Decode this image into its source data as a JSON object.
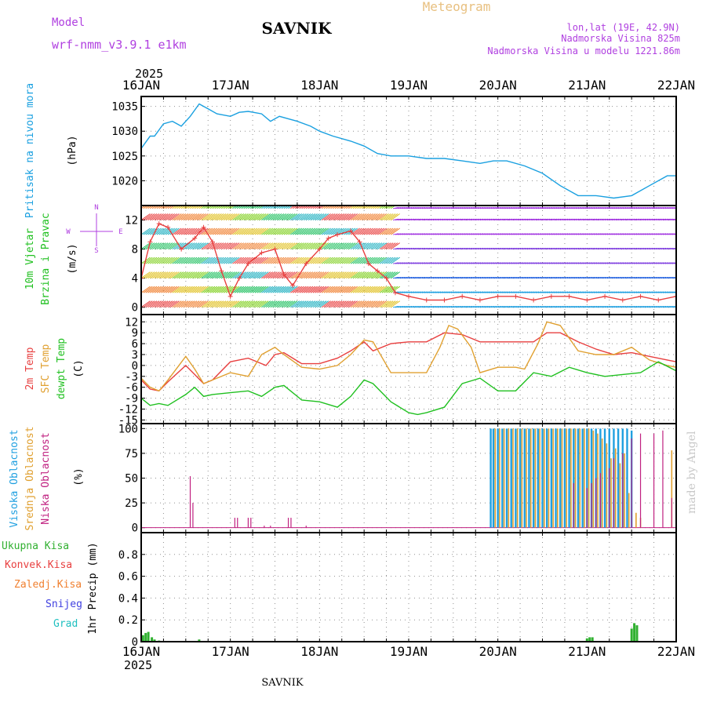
{
  "header": {
    "model_label": "Model",
    "model_name": "wrf-nmm_v3.9.1 e1km",
    "station": "SAVNIK",
    "title": "Meteogram",
    "lonlat": "lon,lat (19E, 42.9N)",
    "elevation": "Nadmorska Visina 825m",
    "model_elevation": "Nadmorska Visina u modelu 1221.86m",
    "year_top": "2025",
    "year_bottom": "2025",
    "footer_station": "SAVNIK",
    "credit": "made by Angel"
  },
  "colors": {
    "pressure": "#1aa0e0",
    "temp2m": "#e84040",
    "sfc": "#e0a030",
    "dewpt": "#20c020",
    "high_cloud": "#20a0e0",
    "mid_cloud": "#e0a030",
    "low_cloud": "#c02080",
    "rain_total": "#30b030",
    "rain_conv": "#e84040",
    "rain_frz": "#f08030",
    "snow": "#4040e0",
    "hail": "#20c0c0",
    "model_purple": "#b040e0"
  },
  "chart_data": [
    {
      "type": "line",
      "panel": "pressure",
      "ylabel": [
        "Pritisak na nivou mora",
        "(hPa)"
      ],
      "unit": "hPa",
      "ylim": [
        1015,
        1037
      ],
      "yticks": [
        1020,
        1025,
        1030,
        1035
      ],
      "x_day_range": [
        16,
        22
      ],
      "series": [
        {
          "x": [
            16.0,
            16.1,
            16.15,
            16.25,
            16.35,
            16.45,
            16.55,
            16.65,
            16.75,
            16.85,
            17.0,
            17.1,
            17.2,
            17.35,
            17.45,
            17.55,
            17.65,
            17.75,
            17.9,
            18.0,
            18.15,
            18.35,
            18.5,
            18.65,
            18.8,
            19.0,
            19.2,
            19.4,
            19.6,
            19.8,
            19.95,
            20.1,
            20.3,
            20.5,
            20.7,
            20.9,
            21.1,
            21.3,
            21.5,
            21.7,
            21.9,
            22.0
          ],
          "y": [
            1026.5,
            1029.0,
            1029.0,
            1031.5,
            1032.0,
            1031.0,
            1033.0,
            1035.5,
            1034.5,
            1033.5,
            1033.0,
            1033.8,
            1034.0,
            1033.5,
            1032.0,
            1033.0,
            1032.5,
            1032.0,
            1031.0,
            1030.0,
            1029.0,
            1028.0,
            1027.0,
            1025.5,
            1025.0,
            1025.0,
            1024.5,
            1024.5,
            1024.0,
            1023.5,
            1024.0,
            1024.0,
            1023.0,
            1021.5,
            1019.0,
            1017.0,
            1017.0,
            1016.5,
            1017.0,
            1019.0,
            1021.0,
            1021.0
          ]
        }
      ]
    },
    {
      "type": "line",
      "panel": "wind",
      "ylabel": [
        "10m Vjetar",
        "Brzina i Pravac",
        "(m/s)"
      ],
      "compass": [
        "N",
        "S",
        "W",
        "E"
      ],
      "unit": "m/s",
      "ylim": [
        -1,
        14
      ],
      "yticks": [
        0,
        4,
        8,
        12
      ],
      "x_day_range": [
        16,
        22
      ],
      "series": [
        {
          "name": "speed",
          "x": [
            16.0,
            16.1,
            16.2,
            16.3,
            16.45,
            16.6,
            16.7,
            16.8,
            16.9,
            17.0,
            17.1,
            17.2,
            17.35,
            17.5,
            17.6,
            17.7,
            17.85,
            18.0,
            18.1,
            18.2,
            18.35,
            18.45,
            18.55,
            18.65,
            18.75,
            18.85,
            19.0,
            19.2,
            19.4,
            19.6,
            19.8,
            20.0,
            20.2,
            20.4,
            20.6,
            20.8,
            21.0,
            21.2,
            21.4,
            21.6,
            21.8,
            22.0
          ],
          "y": [
            4.0,
            9.0,
            11.5,
            11.0,
            8.0,
            9.5,
            11.0,
            9.0,
            5.0,
            1.5,
            4.0,
            6.0,
            7.5,
            8.0,
            4.5,
            3.0,
            6.0,
            8.0,
            9.5,
            10.0,
            10.5,
            9.0,
            6.0,
            5.0,
            4.0,
            2.0,
            1.5,
            1.0,
            1.0,
            1.5,
            1.0,
            1.5,
            1.5,
            1.0,
            1.5,
            1.5,
            1.0,
            1.5,
            1.0,
            1.5,
            1.0,
            1.5
          ]
        }
      ]
    },
    {
      "type": "line",
      "panel": "temperature",
      "ylabel": [
        "2m Temp",
        "SFC Temp",
        "dewpt Temp",
        "(C)"
      ],
      "unit": "C",
      "ylim": [
        -16,
        14
      ],
      "yticks": [
        -15,
        -12,
        -9,
        -6,
        -3,
        0,
        3,
        6,
        9,
        12
      ],
      "x_day_range": [
        16,
        22
      ],
      "series": [
        {
          "name": "2m Temp",
          "x": [
            16.0,
            16.1,
            16.2,
            16.3,
            16.5,
            16.6,
            16.7,
            16.8,
            17.0,
            17.2,
            17.4,
            17.5,
            17.6,
            17.8,
            18.0,
            18.2,
            18.35,
            18.5,
            18.6,
            18.8,
            19.0,
            19.2,
            19.4,
            19.6,
            19.8,
            20.0,
            20.2,
            20.4,
            20.55,
            20.7,
            20.9,
            21.1,
            21.3,
            21.5,
            21.7,
            21.9,
            22.0
          ],
          "y": [
            -4.0,
            -6.5,
            -7.0,
            -4.5,
            0.0,
            -2.5,
            -5.0,
            -4.0,
            1.0,
            2.0,
            0.0,
            3.0,
            3.5,
            0.5,
            0.5,
            2.0,
            4.0,
            6.5,
            4.0,
            6.0,
            6.5,
            6.5,
            9.0,
            8.5,
            6.5,
            6.5,
            6.5,
            6.5,
            9.0,
            9.0,
            6.5,
            4.5,
            3.0,
            3.5,
            2.5,
            1.5,
            1.0
          ]
        },
        {
          "name": "SFC Temp",
          "x": [
            16.0,
            16.1,
            16.2,
            16.3,
            16.5,
            16.6,
            16.7,
            16.8,
            17.0,
            17.2,
            17.35,
            17.5,
            17.6,
            17.8,
            18.0,
            18.2,
            18.35,
            18.5,
            18.6,
            18.8,
            19.0,
            19.2,
            19.35,
            19.45,
            19.55,
            19.7,
            19.8,
            20.0,
            20.2,
            20.3,
            20.45,
            20.55,
            20.7,
            20.9,
            21.1,
            21.3,
            21.5,
            21.7,
            21.9,
            22.0
          ],
          "y": [
            -3.5,
            -6.0,
            -7.0,
            -4.0,
            2.5,
            -1.0,
            -5.0,
            -4.0,
            -2.0,
            -3.0,
            3.0,
            5.0,
            3.0,
            -0.5,
            -1.0,
            0.0,
            3.0,
            7.0,
            6.5,
            -2.0,
            -2.0,
            -2.0,
            5.0,
            11.0,
            10.0,
            5.0,
            -2.0,
            -0.5,
            -0.5,
            -1.0,
            6.0,
            12.0,
            11.0,
            4.0,
            3.0,
            3.0,
            5.0,
            1.5,
            0.0,
            -0.5
          ]
        },
        {
          "name": "dewpt Temp",
          "x": [
            16.0,
            16.1,
            16.2,
            16.3,
            16.5,
            16.6,
            16.7,
            16.8,
            17.0,
            17.2,
            17.35,
            17.5,
            17.6,
            17.8,
            18.0,
            18.2,
            18.35,
            18.5,
            18.6,
            18.8,
            19.0,
            19.1,
            19.2,
            19.4,
            19.6,
            19.8,
            20.0,
            20.2,
            20.4,
            20.6,
            20.8,
            21.0,
            21.2,
            21.4,
            21.6,
            21.8,
            22.0
          ],
          "y": [
            -9.0,
            -11.0,
            -10.5,
            -11.0,
            -8.0,
            -6.0,
            -8.5,
            -8.0,
            -7.5,
            -7.0,
            -8.5,
            -6.0,
            -5.5,
            -9.5,
            -10.0,
            -11.5,
            -8.5,
            -4.0,
            -5.0,
            -10.0,
            -13.0,
            -13.5,
            -13.0,
            -11.5,
            -5.0,
            -3.5,
            -7.0,
            -7.0,
            -2.0,
            -3.0,
            -0.5,
            -2.0,
            -3.0,
            -2.5,
            -2.0,
            1.0,
            -1.5
          ]
        }
      ]
    },
    {
      "type": "bar",
      "panel": "cloud",
      "ylabel": [
        "Visoka Oblacnost",
        "Srednja Oblacnost",
        "Niska Oblacnost",
        "(%)"
      ],
      "unit": "%",
      "ylim": [
        -5,
        105
      ],
      "yticks": [
        0,
        25,
        50,
        75,
        100
      ],
      "x_day_range": [
        16,
        22
      ],
      "series": [
        {
          "name": "Visoka Oblacnost",
          "x": [
            19.92,
            19.95,
            20.0,
            20.05,
            20.1,
            20.15,
            20.2,
            20.25,
            20.3,
            20.35,
            20.4,
            20.45,
            20.5,
            20.55,
            20.6,
            20.65,
            20.7,
            20.75,
            20.8,
            20.85,
            20.9,
            20.95,
            21.0,
            21.05,
            21.1,
            21.15,
            21.2,
            21.25,
            21.3,
            21.35,
            21.4,
            21.45,
            21.5
          ],
          "y": [
            100,
            100,
            100,
            100,
            100,
            100,
            100,
            100,
            100,
            100,
            100,
            100,
            100,
            100,
            100,
            100,
            100,
            100,
            100,
            100,
            100,
            100,
            100,
            100,
            100,
            100,
            100,
            100,
            100,
            100,
            100,
            100,
            98
          ]
        },
        {
          "name": "Srednja Oblacnost",
          "x": [
            19.97,
            20.02,
            20.07,
            20.12,
            20.17,
            20.22,
            20.27,
            20.32,
            20.37,
            20.42,
            20.47,
            20.52,
            20.57,
            20.62,
            20.67,
            20.72,
            20.77,
            20.82,
            20.87,
            20.92,
            20.97,
            21.02,
            21.07,
            21.12,
            21.17,
            21.22,
            21.27,
            21.32,
            21.37,
            21.42,
            21.47,
            21.55,
            21.6,
            21.95
          ],
          "y": [
            100,
            100,
            100,
            100,
            100,
            100,
            100,
            100,
            100,
            100,
            100,
            100,
            100,
            100,
            100,
            100,
            100,
            100,
            100,
            100,
            100,
            100,
            98,
            95,
            90,
            85,
            70,
            80,
            65,
            75,
            35,
            15,
            10,
            78
          ]
        },
        {
          "name": "Niska Oblacnost",
          "x": [
            16.55,
            16.58,
            17.05,
            17.08,
            17.2,
            17.23,
            17.38,
            17.45,
            17.65,
            17.68,
            17.85,
            20.85,
            21.0,
            21.05,
            21.1,
            21.15,
            21.25,
            21.3,
            21.4,
            21.5,
            21.6,
            21.75,
            21.85,
            21.95
          ],
          "y": [
            52,
            25,
            10,
            10,
            10,
            10,
            2,
            2,
            10,
            10,
            2,
            45,
            40,
            45,
            50,
            55,
            60,
            70,
            75,
            90,
            95,
            95,
            98,
            30
          ]
        }
      ]
    },
    {
      "type": "bar",
      "panel": "precip",
      "ylabel": [
        "1hr Precip (mm)"
      ],
      "legend": [
        "Ukupna Kisa",
        "Konvek.Kisa",
        "Zaledj.Kisa",
        "Snijeg",
        "Grad"
      ],
      "unit": "mm",
      "ylim": [
        0,
        1.0
      ],
      "yticks": [
        0,
        0.2,
        0.4,
        0.6,
        0.8
      ],
      "x_day_range": [
        16,
        22
      ],
      "x_labels": [
        "16JAN",
        "17JAN",
        "18JAN",
        "19JAN",
        "20JAN",
        "21JAN",
        "22JAN"
      ],
      "series": [
        {
          "name": "Ukupna Kisa",
          "x": [
            16.02,
            16.05,
            16.08,
            16.12,
            16.15,
            16.2,
            16.65,
            21.0,
            21.03,
            21.06,
            21.5,
            21.53,
            21.56
          ],
          "y": [
            0.06,
            0.08,
            0.09,
            0.04,
            0.02,
            0.01,
            0.02,
            0.03,
            0.04,
            0.04,
            0.12,
            0.17,
            0.15
          ]
        }
      ]
    }
  ]
}
